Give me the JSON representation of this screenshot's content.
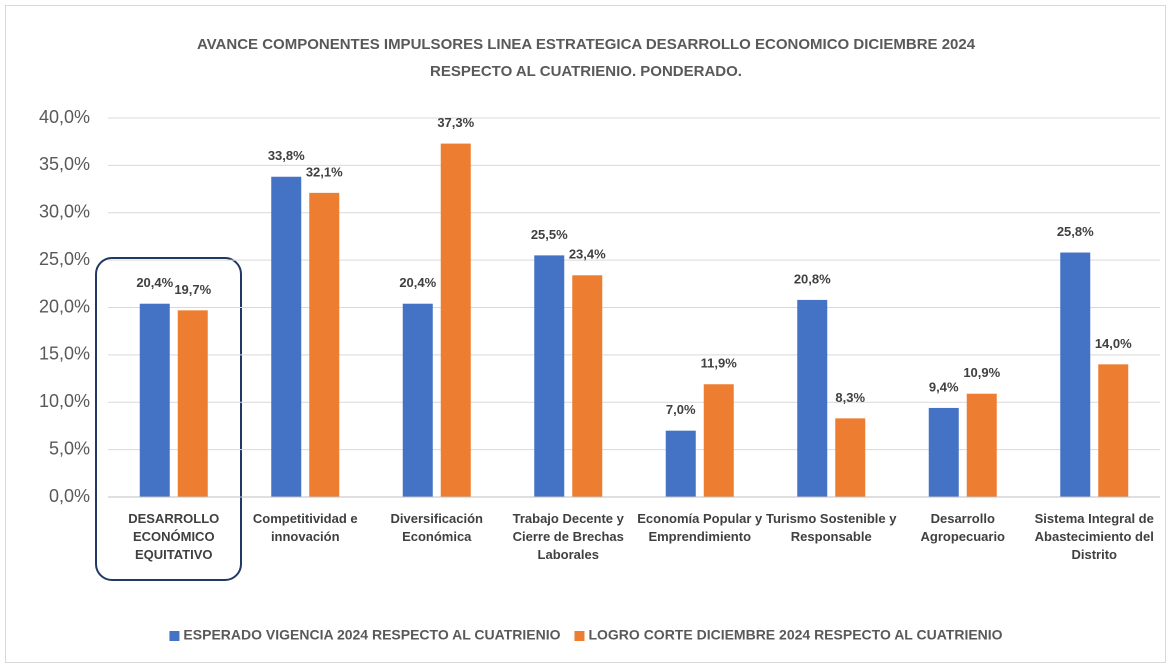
{
  "chart_data": {
    "type": "bar",
    "title": [
      "AVANCE COMPONENTES IMPULSORES LINEA ESTRATEGICA DESARROLLO ECONOMICO  DICIEMBRE 2024",
      "RESPECTO AL CUATRIENIO. PONDERADO."
    ],
    "categories": [
      "DESARROLLO ECONÓMICO EQUITATIVO",
      "Competitividad e innovación",
      "Diversificación Económica",
      "Trabajo Decente y Cierre de Brechas Laborales",
      "Economía Popular y Emprendimiento",
      "Turismo Sostenible y Responsable",
      "Desarrollo Agropecuario",
      "Sistema Integral de Abastecimiento del Distrito"
    ],
    "series": [
      {
        "name": "ESPERADO VIGENCIA  2024 RESPECTO AL CUATRIENIO",
        "color": "#4472c4",
        "values": [
          20.4,
          33.8,
          20.4,
          25.5,
          7.0,
          20.8,
          9.4,
          25.8
        ],
        "value_labels": [
          "20,4%",
          "33,8%",
          "20,4%",
          "25,5%",
          "7,0%",
          "20,8%",
          "9,4%",
          "25,8%"
        ]
      },
      {
        "name": "LOGRO CORTE DICIEMBRE 2024 RESPECTO AL CUATRIENIO",
        "color": "#ed7d31",
        "values": [
          19.7,
          32.1,
          37.3,
          23.4,
          11.9,
          8.3,
          10.9,
          14.0
        ],
        "value_labels": [
          "19,7%",
          "32,1%",
          "37,3%",
          "23,4%",
          "11,9%",
          "8,3%",
          "10,9%",
          "14,0%"
        ]
      }
    ],
    "ylim": [
      0,
      40
    ],
    "yticks": [
      {
        "value": 0,
        "label": "0,0%"
      },
      {
        "value": 5,
        "label": "5,0%"
      },
      {
        "value": 10,
        "label": "10,0%"
      },
      {
        "value": 15,
        "label": "15,0%"
      },
      {
        "value": 20,
        "label": "20,0%"
      },
      {
        "value": 25,
        "label": "25,0%"
      },
      {
        "value": 30,
        "label": "30,0%"
      },
      {
        "value": 35,
        "label": "35,0%"
      },
      {
        "value": 40,
        "label": "40,0%"
      }
    ],
    "grid": true,
    "legend": "bottom"
  }
}
